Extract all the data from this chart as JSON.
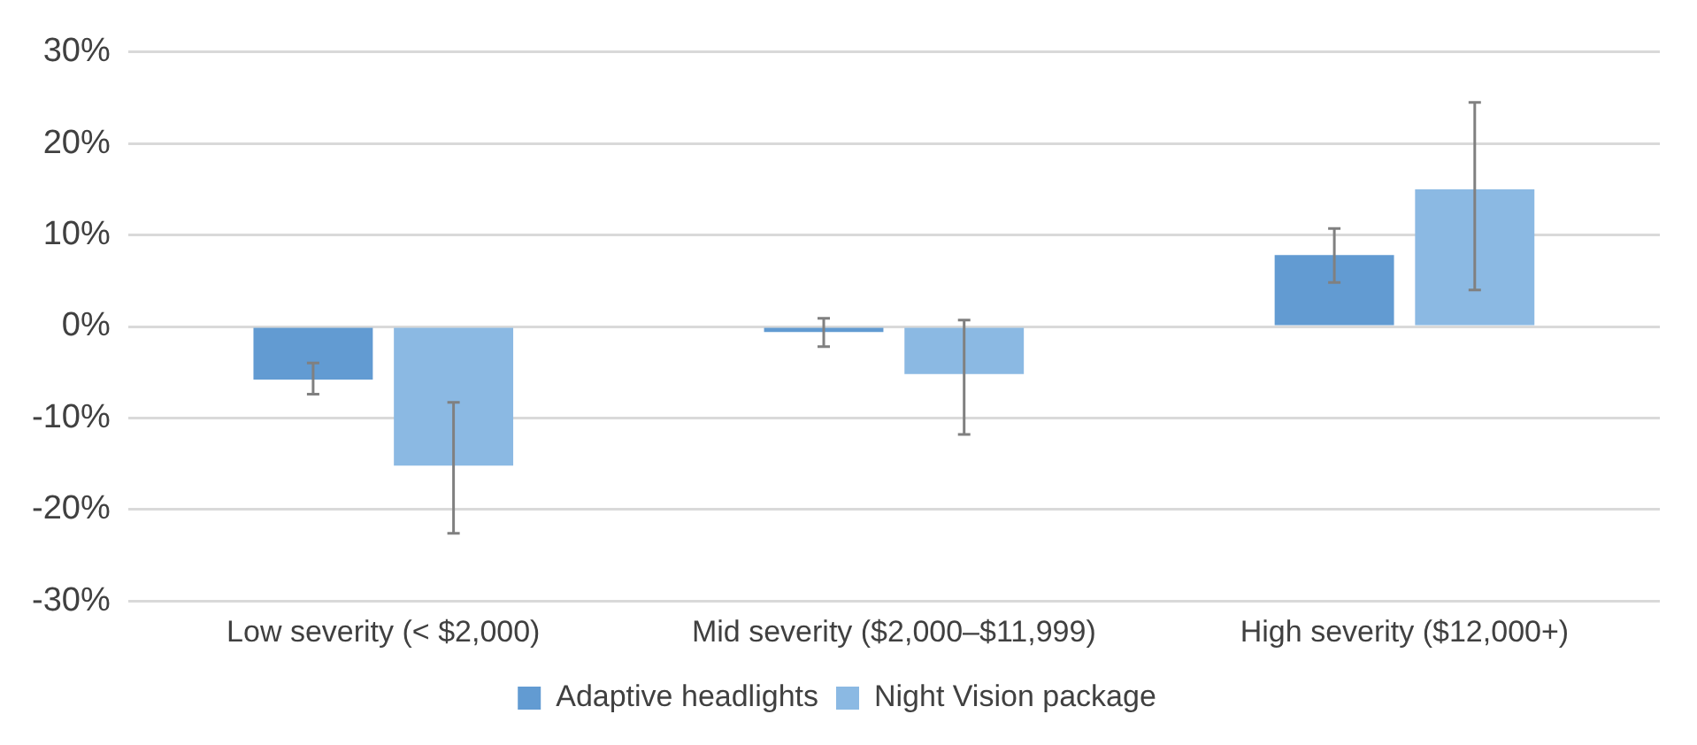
{
  "chart_data": {
    "type": "bar",
    "categories": [
      "Low severity (< $2,000)",
      "Mid severity ($2,000–$11,999)",
      "High severity ($12,000+)"
    ],
    "series": [
      {
        "name": "Adaptive headlights",
        "color": "#629bd2",
        "values": [
          -5.8,
          -0.6,
          7.8
        ],
        "errors": [
          [
            -7.4,
            -4.0
          ],
          [
            -2.2,
            0.9
          ],
          [
            4.8,
            10.7
          ]
        ]
      },
      {
        "name": "Night Vision package",
        "color": "#8bb9e3",
        "values": [
          -15.2,
          -5.2,
          15.0
        ],
        "errors": [
          [
            -22.6,
            -8.3
          ],
          [
            -11.8,
            0.7
          ],
          [
            4.0,
            24.5
          ]
        ]
      }
    ],
    "ylim": [
      -30,
      30
    ],
    "yticks": [
      {
        "value": -30,
        "label": "-30%"
      },
      {
        "value": -20,
        "label": "-20%"
      },
      {
        "value": -10,
        "label": "-10%"
      },
      {
        "value": 0,
        "label": "0%"
      },
      {
        "value": 10,
        "label": "10%"
      },
      {
        "value": 20,
        "label": "20%"
      },
      {
        "value": 30,
        "label": "30%"
      }
    ],
    "grid": "y",
    "legend": "bottom"
  }
}
